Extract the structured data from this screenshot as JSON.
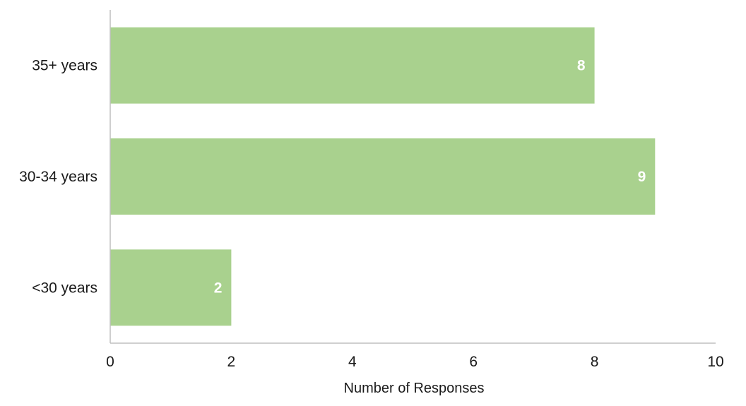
{
  "chart_data": {
    "type": "bar",
    "orientation": "horizontal",
    "categories": [
      "35+ years",
      "30-34 years",
      "<30 years"
    ],
    "values": [
      8,
      9,
      2
    ],
    "data_labels": [
      "8",
      "9",
      "2"
    ],
    "title": "",
    "xlabel": "Number  of Responses",
    "ylabel": "",
    "xlim": [
      0,
      10
    ],
    "x_ticks": [
      0,
      2,
      4,
      6,
      8,
      10
    ],
    "x_tick_labels": [
      "0",
      "2",
      "4",
      "6",
      "8",
      "10"
    ],
    "grid": false,
    "legend": "none",
    "bar_color": "#a9d18e",
    "data_label_color": "#ffffff",
    "axis_color": "#bfbfbf"
  }
}
